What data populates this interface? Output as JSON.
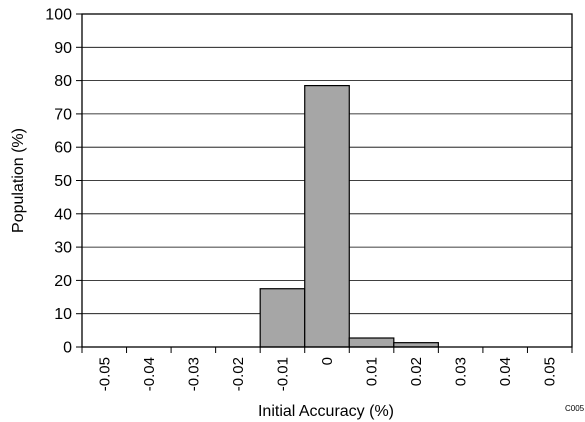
{
  "chart_data": {
    "type": "bar",
    "xlabel": "Initial Accuracy (%)",
    "ylabel": "Population (%)",
    "ylim": [
      0,
      100
    ],
    "yticks": [
      "0",
      "10",
      "20",
      "30",
      "40",
      "50",
      "60",
      "70",
      "80",
      "90",
      "100"
    ],
    "xticks": [
      "-0.05",
      "-0.04",
      "-0.03",
      "-0.02",
      "-0.01",
      "0",
      "0.01",
      "0.02",
      "0.03",
      "0.04",
      "0.05"
    ],
    "bins": [
      {
        "from": -0.015,
        "to": -0.005,
        "value": 17.5
      },
      {
        "from": -0.005,
        "to": 0.005,
        "value": 78.5
      },
      {
        "from": 0.005,
        "to": 0.015,
        "value": 2.7
      },
      {
        "from": 0.015,
        "to": 0.025,
        "value": 1.3
      }
    ],
    "grid": true,
    "colors": {
      "bar_fill": "#a6a6a6",
      "bar_stroke": "#000000",
      "grid": "#000000"
    },
    "figure_id": "C005"
  }
}
